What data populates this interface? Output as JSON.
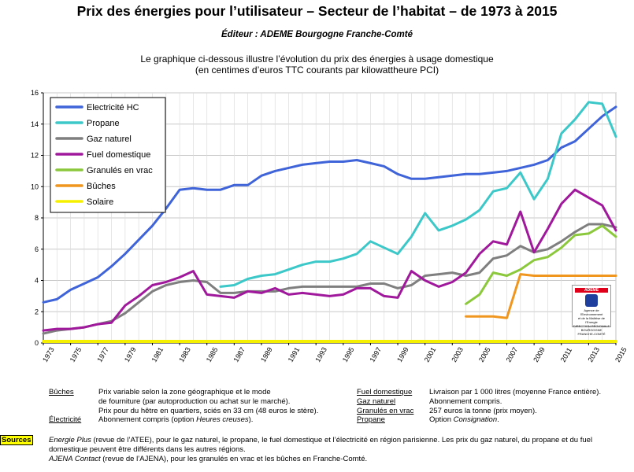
{
  "header": {
    "title": "Prix des énergies pour l’utilisateur – Secteur de l’habitat – de 1973 à 2015",
    "editor": "Éditeur : ADEME Bourgogne Franche-Comté",
    "subtitle_line1": "Le graphique ci-dessous illustre l’évolution du prix des énergies à usage domestique",
    "subtitle_line2": "(en centimes d’euros TTC courants par kilowattheure PCI)"
  },
  "logo": {
    "name": "ADEME",
    "line1": "Agence de l'Environnement",
    "line2": "et de la Maîtrise de l'Energie",
    "line3": "DIRECTION RÉGIONALE",
    "line4": "BOURGOGNE",
    "line5": "FRANCHE-COMTÉ"
  },
  "notes": {
    "buches_label": "Bûches",
    "buches_text1": "Prix variable selon la zone géographique et le mode",
    "buches_text2": "de fourniture (par autoproduction ou achat sur le marché).",
    "buches_text3": "Prix pour du hêtre en quartiers, sciés en 33 cm (48 euros le stère).",
    "elec_label": "Électricité",
    "elec_text_a": "Abonnement compris (option ",
    "elec_text_b": "Heures creuses",
    "elec_text_c": ").",
    "fuel_label": "Fuel domestique",
    "fuel_text": "Livraison par 1 000 litres (moyenne France entière).",
    "gaz_label": "Gaz naturel",
    "gaz_text": "Abonnement compris.",
    "granules_label": "Granulés en vrac",
    "granules_text": "257 euros la tonne (prix moyen).",
    "propane_label": "Propane",
    "propane_text_a": "Option ",
    "propane_text_b": "Consignation",
    "propane_text_c": "."
  },
  "sources": {
    "badge": "Sources",
    "line1_a": "Energie Plus",
    "line1_b": " (revue de l’ATEE), pour le gaz naturel, le propane, le fuel domestique et l’électricité en région parisienne. Les prix du gaz naturel, du propane et du fuel",
    "line2": "domestique peuvent être différents dans les autres régions.",
    "line3_a": "AJENA Contact",
    "line3_b": " (revue de l’AJENA), pour les granulés en vrac et les bûches en Franche-Comté."
  },
  "chart_data": {
    "type": "line",
    "title": "",
    "xlabel": "",
    "ylabel": "",
    "xlim": [
      1973,
      2015
    ],
    "ylim": [
      0,
      16
    ],
    "yticks": [
      0,
      2,
      4,
      6,
      8,
      10,
      12,
      14,
      16
    ],
    "xticks": [
      1973,
      1975,
      1977,
      1979,
      1981,
      1983,
      1985,
      1987,
      1989,
      1991,
      1993,
      1995,
      1997,
      1999,
      2001,
      2003,
      2005,
      2007,
      2009,
      2011,
      2013,
      2015
    ],
    "grid": true,
    "legend_position": "top-left",
    "series": [
      {
        "name": "Electricité HC",
        "color": "#3f63d8",
        "points": [
          [
            1973,
            2.6
          ],
          [
            1974,
            2.8
          ],
          [
            1975,
            3.4
          ],
          [
            1976,
            3.8
          ],
          [
            1977,
            4.2
          ],
          [
            1978,
            4.9
          ],
          [
            1979,
            5.7
          ],
          [
            1980,
            6.6
          ],
          [
            1981,
            7.5
          ],
          [
            1982,
            8.6
          ],
          [
            1983,
            9.8
          ],
          [
            1984,
            9.9
          ],
          [
            1985,
            9.8
          ],
          [
            1986,
            9.8
          ],
          [
            1987,
            10.1
          ],
          [
            1988,
            10.1
          ],
          [
            1989,
            10.7
          ],
          [
            1990,
            11.0
          ],
          [
            1991,
            11.2
          ],
          [
            1992,
            11.4
          ],
          [
            1993,
            11.5
          ],
          [
            1994,
            11.6
          ],
          [
            1995,
            11.6
          ],
          [
            1996,
            11.7
          ],
          [
            1997,
            11.5
          ],
          [
            1998,
            11.3
          ],
          [
            1999,
            10.8
          ],
          [
            2000,
            10.5
          ],
          [
            2001,
            10.5
          ],
          [
            2002,
            10.6
          ],
          [
            2003,
            10.7
          ],
          [
            2004,
            10.8
          ],
          [
            2005,
            10.8
          ],
          [
            2006,
            10.9
          ],
          [
            2007,
            11.0
          ],
          [
            2008,
            11.2
          ],
          [
            2009,
            11.4
          ],
          [
            2010,
            11.7
          ],
          [
            2011,
            12.5
          ],
          [
            2012,
            12.9
          ],
          [
            2013,
            13.7
          ],
          [
            2014,
            14.5
          ],
          [
            2015,
            15.1
          ]
        ]
      },
      {
        "name": "Propane",
        "color": "#3cc8c8",
        "points": [
          [
            1986,
            3.6
          ],
          [
            1987,
            3.7
          ],
          [
            1988,
            4.1
          ],
          [
            1989,
            4.3
          ],
          [
            1990,
            4.4
          ],
          [
            1991,
            4.7
          ],
          [
            1992,
            5.0
          ],
          [
            1993,
            5.2
          ],
          [
            1994,
            5.2
          ],
          [
            1995,
            5.4
          ],
          [
            1996,
            5.7
          ],
          [
            1997,
            6.5
          ],
          [
            1998,
            6.1
          ],
          [
            1999,
            5.7
          ],
          [
            2000,
            6.8
          ],
          [
            2001,
            8.3
          ],
          [
            2002,
            7.2
          ],
          [
            2003,
            7.5
          ],
          [
            2004,
            7.9
          ],
          [
            2005,
            8.5
          ],
          [
            2006,
            9.7
          ],
          [
            2007,
            9.9
          ],
          [
            2008,
            10.9
          ],
          [
            2009,
            9.2
          ],
          [
            2010,
            10.5
          ],
          [
            2011,
            13.4
          ],
          [
            2012,
            14.3
          ],
          [
            2013,
            15.4
          ],
          [
            2014,
            15.3
          ],
          [
            2015,
            13.2
          ]
        ]
      },
      {
        "name": "Gaz naturel",
        "color": "#7f7f7f",
        "points": [
          [
            1973,
            0.6
          ],
          [
            1974,
            0.8
          ],
          [
            1975,
            0.9
          ],
          [
            1976,
            1.0
          ],
          [
            1977,
            1.2
          ],
          [
            1978,
            1.4
          ],
          [
            1979,
            1.9
          ],
          [
            1980,
            2.6
          ],
          [
            1981,
            3.3
          ],
          [
            1982,
            3.7
          ],
          [
            1983,
            3.9
          ],
          [
            1984,
            4.0
          ],
          [
            1985,
            3.9
          ],
          [
            1986,
            3.2
          ],
          [
            1987,
            3.2
          ],
          [
            1988,
            3.3
          ],
          [
            1989,
            3.3
          ],
          [
            1990,
            3.3
          ],
          [
            1991,
            3.5
          ],
          [
            1992,
            3.6
          ],
          [
            1993,
            3.6
          ],
          [
            1994,
            3.6
          ],
          [
            1995,
            3.6
          ],
          [
            1996,
            3.6
          ],
          [
            1997,
            3.8
          ],
          [
            1998,
            3.8
          ],
          [
            1999,
            3.5
          ],
          [
            2000,
            3.7
          ],
          [
            2001,
            4.3
          ],
          [
            2002,
            4.4
          ],
          [
            2003,
            4.5
          ],
          [
            2004,
            4.3
          ],
          [
            2005,
            4.5
          ],
          [
            2006,
            5.4
          ],
          [
            2007,
            5.6
          ],
          [
            2008,
            6.2
          ],
          [
            2009,
            5.8
          ],
          [
            2010,
            6.0
          ],
          [
            2011,
            6.5
          ],
          [
            2012,
            7.1
          ],
          [
            2013,
            7.6
          ],
          [
            2014,
            7.6
          ],
          [
            2015,
            7.4
          ]
        ]
      },
      {
        "name": "Fuel domestique",
        "color": "#a0199c",
        "points": [
          [
            1973,
            0.8
          ],
          [
            1974,
            0.9
          ],
          [
            1975,
            0.9
          ],
          [
            1976,
            1.0
          ],
          [
            1977,
            1.2
          ],
          [
            1978,
            1.3
          ],
          [
            1979,
            2.4
          ],
          [
            1980,
            3.0
          ],
          [
            1981,
            3.7
          ],
          [
            1982,
            3.9
          ],
          [
            1983,
            4.2
          ],
          [
            1984,
            4.6
          ],
          [
            1985,
            3.1
          ],
          [
            1986,
            3.0
          ],
          [
            1987,
            2.9
          ],
          [
            1988,
            3.3
          ],
          [
            1989,
            3.2
          ],
          [
            1990,
            3.5
          ],
          [
            1991,
            3.1
          ],
          [
            1992,
            3.2
          ],
          [
            1993,
            3.1
          ],
          [
            1994,
            3.0
          ],
          [
            1995,
            3.1
          ],
          [
            1996,
            3.5
          ],
          [
            1997,
            3.5
          ],
          [
            1998,
            3.0
          ],
          [
            1999,
            2.9
          ],
          [
            2000,
            4.6
          ],
          [
            2001,
            4.0
          ],
          [
            2002,
            3.6
          ],
          [
            2003,
            3.9
          ],
          [
            2004,
            4.5
          ],
          [
            2005,
            5.7
          ],
          [
            2006,
            6.5
          ],
          [
            2007,
            6.3
          ],
          [
            2008,
            8.4
          ],
          [
            2009,
            5.8
          ],
          [
            2010,
            7.3
          ],
          [
            2011,
            8.9
          ],
          [
            2012,
            9.8
          ],
          [
            2013,
            9.3
          ],
          [
            2014,
            8.8
          ],
          [
            2015,
            7.2
          ]
        ]
      },
      {
        "name": "Granulés en vrac",
        "color": "#8cc83c",
        "points": [
          [
            2004,
            2.5
          ],
          [
            2005,
            3.1
          ],
          [
            2006,
            4.5
          ],
          [
            2007,
            4.3
          ],
          [
            2008,
            4.7
          ],
          [
            2009,
            5.3
          ],
          [
            2010,
            5.5
          ],
          [
            2011,
            6.1
          ],
          [
            2012,
            6.9
          ],
          [
            2013,
            7.0
          ],
          [
            2014,
            7.5
          ],
          [
            2015,
            6.8
          ]
        ]
      },
      {
        "name": "Bûches",
        "color": "#f0961e",
        "points": [
          [
            2004,
            1.7
          ],
          [
            2005,
            1.7
          ],
          [
            2006,
            1.7
          ],
          [
            2007,
            1.6
          ],
          [
            2008,
            4.4
          ],
          [
            2009,
            4.3
          ],
          [
            2010,
            4.3
          ],
          [
            2011,
            4.3
          ],
          [
            2012,
            4.3
          ],
          [
            2013,
            4.3
          ],
          [
            2014,
            4.3
          ],
          [
            2015,
            4.3
          ]
        ]
      },
      {
        "name": "Solaire",
        "color": "#f5f000",
        "points": [
          [
            1973,
            0.1
          ],
          [
            2015,
            0.1
          ]
        ]
      }
    ]
  }
}
